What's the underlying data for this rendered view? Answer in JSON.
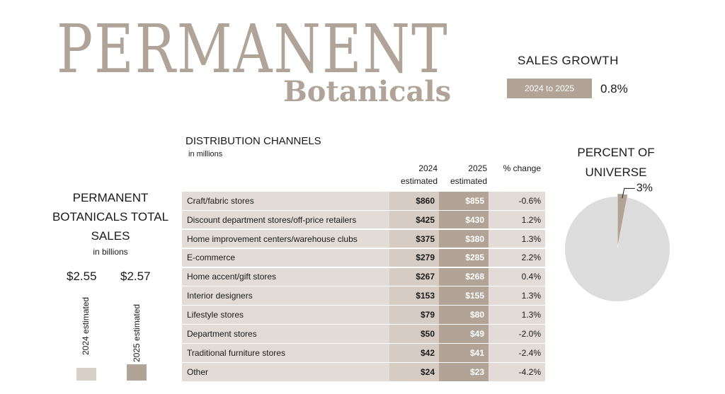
{
  "title": {
    "main": "PERMANENT",
    "sub": "Botanicals"
  },
  "sales_growth": {
    "title": "SALES GROWTH",
    "period": "2024 to 2025",
    "value": "0.8%"
  },
  "total_sales": {
    "title_lines": [
      "PERMANENT",
      "BOTANICALS TOTAL",
      "SALES"
    ],
    "unit": "in billions",
    "values": [
      "$2.55",
      "$2.57"
    ],
    "labels": [
      "2024 estimated",
      "2025 estimated"
    ],
    "colors": [
      "#d8cfc7",
      "#b1a395"
    ]
  },
  "distribution": {
    "title": "DISTRIBUTION CHANNELS",
    "unit": "in millions",
    "headers": {
      "y2024": [
        "2024",
        "estimated"
      ],
      "y2025": [
        "2025",
        "estimated"
      ],
      "change": "% change"
    },
    "rows": [
      {
        "name": "Craft/fabric stores",
        "y2024": "$860",
        "y2025": "$855",
        "change": "-0.6%"
      },
      {
        "name": "Discount department stores/off-price retailers",
        "y2024": "$425",
        "y2025": "$430",
        "change": "1.2%"
      },
      {
        "name": "Home improvement centers/warehouse clubs",
        "y2024": "$375",
        "y2025": "$380",
        "change": "1.3%"
      },
      {
        "name": "E-commerce",
        "y2024": "$279",
        "y2025": "$285",
        "change": "2.2%"
      },
      {
        "name": "Home accent/gift stores",
        "y2024": "$267",
        "y2025": "$268",
        "change": "0.4%"
      },
      {
        "name": "Interior designers",
        "y2024": "$153",
        "y2025": "$155",
        "change": "1.3%"
      },
      {
        "name": "Lifestyle stores",
        "y2024": "$79",
        "y2025": "$80",
        "change": "1.3%"
      },
      {
        "name": "Department stores",
        "y2024": "$50",
        "y2025": "$49",
        "change": "-2.0%"
      },
      {
        "name": "Traditional furniture stores",
        "y2024": "$42",
        "y2025": "$41",
        "change": "-2.4%"
      },
      {
        "name": "Other",
        "y2024": "$24",
        "y2025": "$23",
        "change": "-4.2%"
      }
    ]
  },
  "pie": {
    "title_lines": [
      "PERCENT OF",
      "UNIVERSE"
    ],
    "label": "3%"
  },
  "chart_data": [
    {
      "type": "bar",
      "title": "PERMANENT BOTANICALS TOTAL SALES",
      "ylabel": "in billions",
      "categories": [
        "2024 estimated",
        "2025 estimated"
      ],
      "values": [
        2.55,
        2.57
      ]
    },
    {
      "type": "table",
      "title": "DISTRIBUTION CHANNELS",
      "ylabel": "in millions",
      "columns": [
        "2024 estimated",
        "2025 estimated",
        "% change"
      ],
      "categories": [
        "Craft/fabric stores",
        "Discount department stores/off-price retailers",
        "Home improvement centers/warehouse clubs",
        "E-commerce",
        "Home accent/gift stores",
        "Interior designers",
        "Lifestyle stores",
        "Department stores",
        "Traditional furniture stores",
        "Other"
      ],
      "series": [
        {
          "name": "2024 estimated",
          "values": [
            860,
            425,
            375,
            279,
            267,
            153,
            79,
            50,
            42,
            24
          ]
        },
        {
          "name": "2025 estimated",
          "values": [
            855,
            430,
            380,
            285,
            268,
            155,
            80,
            49,
            41,
            23
          ]
        },
        {
          "name": "% change",
          "values": [
            -0.6,
            1.2,
            1.3,
            2.2,
            0.4,
            1.3,
            1.3,
            -2.0,
            -2.4,
            -4.2
          ]
        }
      ]
    },
    {
      "type": "pie",
      "title": "PERCENT OF UNIVERSE",
      "values": [
        3,
        97
      ],
      "colors": [
        "#b1a395",
        "#dcdcdc"
      ]
    }
  ]
}
